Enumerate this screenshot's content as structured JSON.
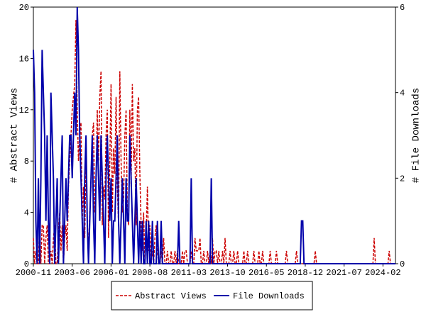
{
  "chart_data": {
    "type": "line",
    "y_label": "# Abstract Views",
    "y2_label": "# File Downloads",
    "xlim": [
      0,
      289
    ],
    "xticks": [
      {
        "value": 0,
        "label": "2000-11"
      },
      {
        "value": 31,
        "label": "2003-06"
      },
      {
        "value": 62,
        "label": "2006-01"
      },
      {
        "value": 93,
        "label": "2008-08"
      },
      {
        "value": 124,
        "label": "2011-03"
      },
      {
        "value": 155,
        "label": "2013-10"
      },
      {
        "value": 186,
        "label": "2016-05"
      },
      {
        "value": 217,
        "label": "2018-12"
      },
      {
        "value": 248,
        "label": "2021-07"
      },
      {
        "value": 279,
        "label": "2024-02"
      }
    ],
    "ylim": [
      0,
      20
    ],
    "yticks": [
      0,
      4,
      8,
      12,
      16,
      20
    ],
    "y2lim": [
      0,
      6
    ],
    "y2ticks": [
      0,
      2,
      4,
      6
    ],
    "series": [
      {
        "name": "Abstract Views",
        "color": "#cc0000",
        "dash": true,
        "values": [
          2,
          0,
          1,
          0,
          0,
          3,
          0,
          3,
          3,
          0,
          2,
          3,
          0,
          0,
          1,
          0,
          2,
          3,
          0,
          0,
          2,
          4,
          1,
          3,
          0,
          2,
          3,
          1,
          6,
          8,
          10,
          12,
          13,
          14,
          19,
          12,
          8,
          10,
          11,
          3,
          6,
          2,
          8,
          3,
          1,
          4,
          6,
          10,
          11,
          4,
          6,
          12,
          8,
          13,
          15,
          3,
          6,
          5,
          10,
          12,
          2,
          8,
          14,
          4,
          9,
          7,
          13,
          6,
          3,
          15,
          8,
          4,
          5,
          10,
          12,
          4,
          3,
          12,
          6,
          14,
          8,
          9,
          3,
          12,
          13,
          7,
          3,
          1,
          4,
          0,
          2,
          6,
          1,
          3,
          0,
          1,
          0,
          2,
          3,
          1,
          0,
          0,
          1,
          0,
          2,
          0,
          0,
          1,
          0,
          0,
          1,
          0,
          0,
          1,
          0,
          1,
          0,
          0,
          0,
          1,
          0,
          1,
          1,
          0,
          0,
          0,
          1,
          0,
          0,
          2,
          1,
          1,
          1,
          2,
          0,
          0,
          1,
          0,
          0,
          1,
          0,
          1,
          0,
          2,
          0,
          1,
          1,
          0,
          1,
          0,
          0,
          1,
          0,
          2,
          0,
          0,
          0,
          1,
          0,
          0,
          1,
          0,
          0,
          1,
          0,
          0,
          0,
          0,
          1,
          0,
          0,
          1,
          0,
          0,
          0,
          0,
          1,
          0,
          0,
          0,
          1,
          0,
          0,
          1,
          0,
          0,
          0,
          0,
          0,
          1,
          0,
          0,
          0,
          0,
          1,
          0,
          0,
          0,
          0,
          0,
          0,
          0,
          1,
          0,
          0,
          0,
          0,
          0,
          0,
          0,
          1,
          0,
          0,
          0,
          0,
          0,
          0,
          0,
          0,
          0,
          0,
          0,
          0,
          0,
          0,
          1,
          0,
          0,
          0,
          0,
          0,
          0,
          0,
          0,
          0,
          0,
          0,
          0,
          0,
          0,
          0,
          0,
          0,
          0,
          0,
          0,
          0,
          0,
          0,
          0,
          0,
          0,
          0,
          0,
          0,
          0,
          0,
          0,
          0,
          0,
          0,
          0,
          0,
          0,
          0,
          0,
          0,
          0,
          0,
          0,
          0,
          0,
          2,
          0,
          0,
          0,
          0,
          0,
          0,
          0,
          0,
          0,
          0,
          0,
          1,
          0,
          0,
          0,
          0,
          0
        ]
      },
      {
        "name": "File Downloads",
        "color": "#0000aa",
        "axis": "y2",
        "values": [
          5,
          4,
          1,
          0,
          2,
          0,
          2,
          5,
          4,
          3,
          1,
          3,
          1,
          0,
          4,
          3,
          2,
          0,
          1,
          2,
          0,
          1,
          2,
          3,
          0,
          1,
          2,
          1,
          2,
          3,
          3,
          2,
          3,
          4,
          3,
          6,
          5,
          3,
          2,
          1,
          0,
          2,
          3,
          1,
          0,
          1,
          2,
          3,
          1,
          0,
          2,
          3,
          2,
          1,
          3,
          2,
          1,
          0,
          2,
          3,
          2,
          1,
          2,
          0,
          1,
          1,
          2,
          3,
          1,
          0,
          1,
          2,
          1,
          0,
          2,
          1,
          1,
          3,
          2,
          1,
          0,
          1,
          2,
          1,
          0,
          1,
          0,
          1,
          0,
          0,
          1,
          0,
          1,
          0,
          0,
          1,
          0,
          0,
          0,
          1,
          0,
          0,
          1,
          0,
          0,
          0,
          0,
          0,
          0,
          0,
          0,
          0,
          0,
          0,
          0,
          0,
          1,
          0,
          0,
          0,
          0,
          0,
          0,
          0,
          0,
          0,
          2,
          0,
          0,
          0,
          0,
          0,
          0,
          0,
          0,
          0,
          0,
          0,
          0,
          0,
          0,
          0,
          2,
          0,
          0,
          0,
          0,
          0,
          0,
          0,
          0,
          0,
          0,
          0,
          0,
          0,
          0,
          0,
          0,
          0,
          0,
          0,
          0,
          0,
          0,
          0,
          0,
          0,
          0,
          0,
          0,
          0,
          0,
          0,
          0,
          0,
          0,
          0,
          0,
          0,
          0,
          0,
          0,
          0,
          0,
          0,
          0,
          0,
          0,
          0,
          0,
          0,
          0,
          0,
          0,
          0,
          0,
          0,
          0,
          0,
          0,
          0,
          0,
          0,
          0,
          0,
          0,
          0,
          0,
          0,
          0,
          0,
          0,
          0,
          1,
          1,
          0,
          0,
          0,
          0,
          0,
          0,
          0,
          0,
          0,
          0,
          0,
          0,
          0,
          0,
          0,
          0,
          0,
          0,
          0,
          0,
          0,
          0,
          0,
          0,
          0,
          0,
          0,
          0,
          0,
          0,
          0,
          0,
          0,
          0,
          0,
          0,
          0,
          0,
          0,
          0,
          0,
          0,
          0,
          0,
          0,
          0,
          0,
          0,
          0,
          0,
          0,
          0,
          0,
          0,
          0,
          0,
          0,
          0,
          0,
          0,
          0,
          0,
          0,
          0,
          0,
          0,
          0,
          0,
          0,
          0,
          0,
          0,
          0,
          0
        ]
      }
    ]
  }
}
